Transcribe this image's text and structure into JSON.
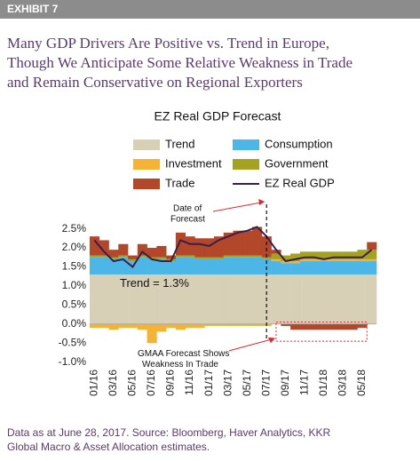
{
  "exhibit": "EXHIBIT 7",
  "title_lines": [
    "Many GDP Drivers Are Positive vs. Trend in Europe,",
    "Though We Anticipate Some Relative Weakness in Trade",
    "and Remain Conservative on Regional Exporters"
  ],
  "source_lines": [
    "Data as at June 28, 2017. Source: Bloomberg, Haver Analytics, KKR",
    "Global Macro & Asset Allocation estimates."
  ],
  "chart_data": {
    "type": "bar",
    "title": "EZ Real GDP Forecast",
    "categories": [
      "01/16",
      null,
      "03/16",
      null,
      "05/16",
      null,
      "07/16",
      null,
      "09/16",
      null,
      "11/16",
      null,
      "01/17",
      null,
      "03/17",
      null,
      "05/17",
      null,
      "07/17",
      null,
      "09/17",
      null,
      "11/17",
      null,
      "01/18",
      null,
      "03/18",
      null,
      "05/18",
      null
    ],
    "series": [
      {
        "name": "Trend",
        "color": "#d7cfb6",
        "values": [
          1.3,
          1.3,
          1.3,
          1.3,
          1.3,
          1.3,
          1.3,
          1.3,
          1.3,
          1.3,
          1.3,
          1.3,
          1.3,
          1.3,
          1.3,
          1.3,
          1.3,
          1.3,
          1.3,
          1.3,
          1.3,
          1.3,
          1.3,
          1.3,
          1.3,
          1.3,
          1.3,
          1.3,
          1.3,
          1.3
        ]
      },
      {
        "name": "Consumption",
        "color": "#4cb6e6",
        "values": [
          0.45,
          0.45,
          0.4,
          0.45,
          0.35,
          0.45,
          0.4,
          0.4,
          0.35,
          0.45,
          0.45,
          0.4,
          0.4,
          0.4,
          0.45,
          0.45,
          0.45,
          0.45,
          0.4,
          0.35,
          0.3,
          0.3,
          0.35,
          0.35,
          0.35,
          0.35,
          0.35,
          0.35,
          0.35,
          0.35
        ]
      },
      {
        "name": "Investment",
        "color": "#f5b335",
        "values": [
          -0.1,
          -0.1,
          -0.15,
          -0.1,
          -0.1,
          -0.15,
          -0.5,
          -0.2,
          -0.1,
          -0.15,
          -0.1,
          -0.1,
          -0.05,
          -0.05,
          -0.05,
          -0.05,
          -0.05,
          -0.05,
          -0.05,
          0.05,
          0.05,
          0.05,
          0.05,
          0.05,
          0.05,
          0.05,
          0.05,
          0.05,
          0.05,
          0.05
        ]
      },
      {
        "name": "Government",
        "color": "#a3a321",
        "values": [
          0.05,
          0.05,
          0.05,
          0.05,
          0.05,
          0.05,
          0.05,
          0.05,
          0.05,
          0.05,
          0.05,
          0.05,
          0.05,
          0.05,
          0.05,
          0.05,
          0.05,
          0.05,
          0.05,
          0.15,
          0.15,
          0.2,
          0.2,
          0.2,
          0.2,
          0.2,
          0.2,
          0.2,
          0.25,
          0.25
        ]
      },
      {
        "name": "Trade",
        "color": "#b3472a",
        "values": [
          0.5,
          0.4,
          0.2,
          0.3,
          0.1,
          0.3,
          0.25,
          0.3,
          0.1,
          0.6,
          0.5,
          0.5,
          0.5,
          0.55,
          0.6,
          0.65,
          0.65,
          0.75,
          0.55,
          0.1,
          -0.05,
          -0.15,
          -0.15,
          -0.15,
          -0.15,
          -0.15,
          -0.15,
          -0.15,
          -0.1,
          0.2
        ]
      },
      {
        "name": "EZ Real GDP",
        "type": "line",
        "color": "#3a1f4a",
        "values": [
          2.2,
          1.9,
          1.65,
          1.7,
          1.5,
          1.9,
          1.7,
          1.65,
          1.65,
          2.2,
          2.1,
          2.1,
          2.05,
          2.2,
          2.3,
          2.4,
          2.45,
          2.55,
          2.3,
          1.95,
          1.65,
          1.7,
          1.75,
          1.75,
          1.7,
          1.75,
          1.75,
          1.75,
          1.75,
          1.95
        ]
      }
    ],
    "ylim": [
      -1.1,
      2.7
    ],
    "yticks": [
      {
        "value": -1.0,
        "label": "-1.0%"
      },
      {
        "value": -0.5,
        "label": "-0.5%"
      },
      {
        "value": 0.0,
        "label": "0.0%"
      },
      {
        "value": 0.5,
        "label": "0.5%"
      },
      {
        "value": 1.0,
        "label": "1.0%"
      },
      {
        "value": 1.5,
        "label": "1.5%"
      },
      {
        "value": 2.0,
        "label": "2.0%"
      },
      {
        "value": 2.5,
        "label": "2.5%"
      }
    ],
    "annotations": {
      "trend": "Trend = 1.3%",
      "forecast": [
        "Date of",
        "Forecast"
      ],
      "weakness": [
        "GMAA Forecast Shows",
        "Weakness In Trade"
      ]
    }
  }
}
